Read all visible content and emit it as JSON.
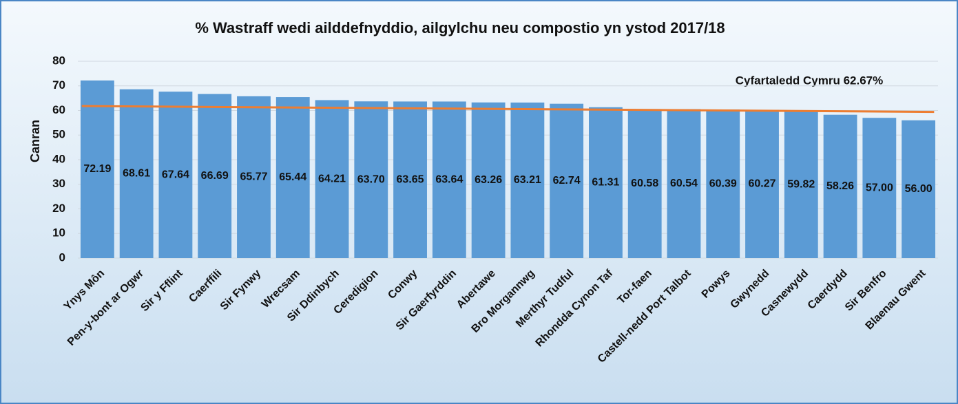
{
  "chart_data": {
    "type": "bar",
    "title": "% Wastraff wedi ailddefnyddio, ailgylchu neu compostio yn ystod 2017/18",
    "ylabel": "Canran",
    "annotation": "Cyfartaledd Cymru 62.67%",
    "categories": [
      "Ynys Môn",
      "Pen-y-bont ar Ogwr",
      "Sir y Fflint",
      "Caerffili",
      "Sir Fynwy",
      "Wrecsam",
      "Sir Ddinbych",
      "Ceredigion",
      "Conwy",
      "Sir Gaerfyrddin",
      "Abertawe",
      "Bro Morgannwg",
      "Merthyr Tudful",
      "Rhondda Cynon Taf",
      "Tor-faen",
      "Castell-nedd Port Talbot",
      "Powys",
      "Gwynedd",
      "Casnewydd",
      "Caerdydd",
      "Sir Benfro",
      "Blaenau Gwent"
    ],
    "values": [
      72.19,
      68.61,
      67.64,
      66.69,
      65.77,
      65.44,
      64.21,
      63.7,
      63.65,
      63.64,
      63.26,
      63.21,
      62.74,
      61.31,
      60.58,
      60.54,
      60.39,
      60.27,
      59.82,
      58.26,
      57,
      56
    ],
    "value_labels": [
      "72.19",
      "68.61",
      "67.64",
      "66.69",
      "65.77",
      "65.44",
      "64.21",
      "63.70",
      "63.65",
      "63.64",
      "63.26",
      "63.21",
      "62.74",
      "61.31",
      "60.58",
      "60.54",
      "60.39",
      "60.27",
      "59.82",
      "58.26",
      "57.00",
      "56.00"
    ],
    "color": "#5b9bd5",
    "trendline": {
      "color": "#ed7d31",
      "start": 61.8,
      "end": 59.4
    },
    "ylim": [
      0,
      80
    ],
    "yticks": [
      0,
      10,
      20,
      30,
      40,
      50,
      60,
      70,
      80
    ],
    "grid": true
  }
}
